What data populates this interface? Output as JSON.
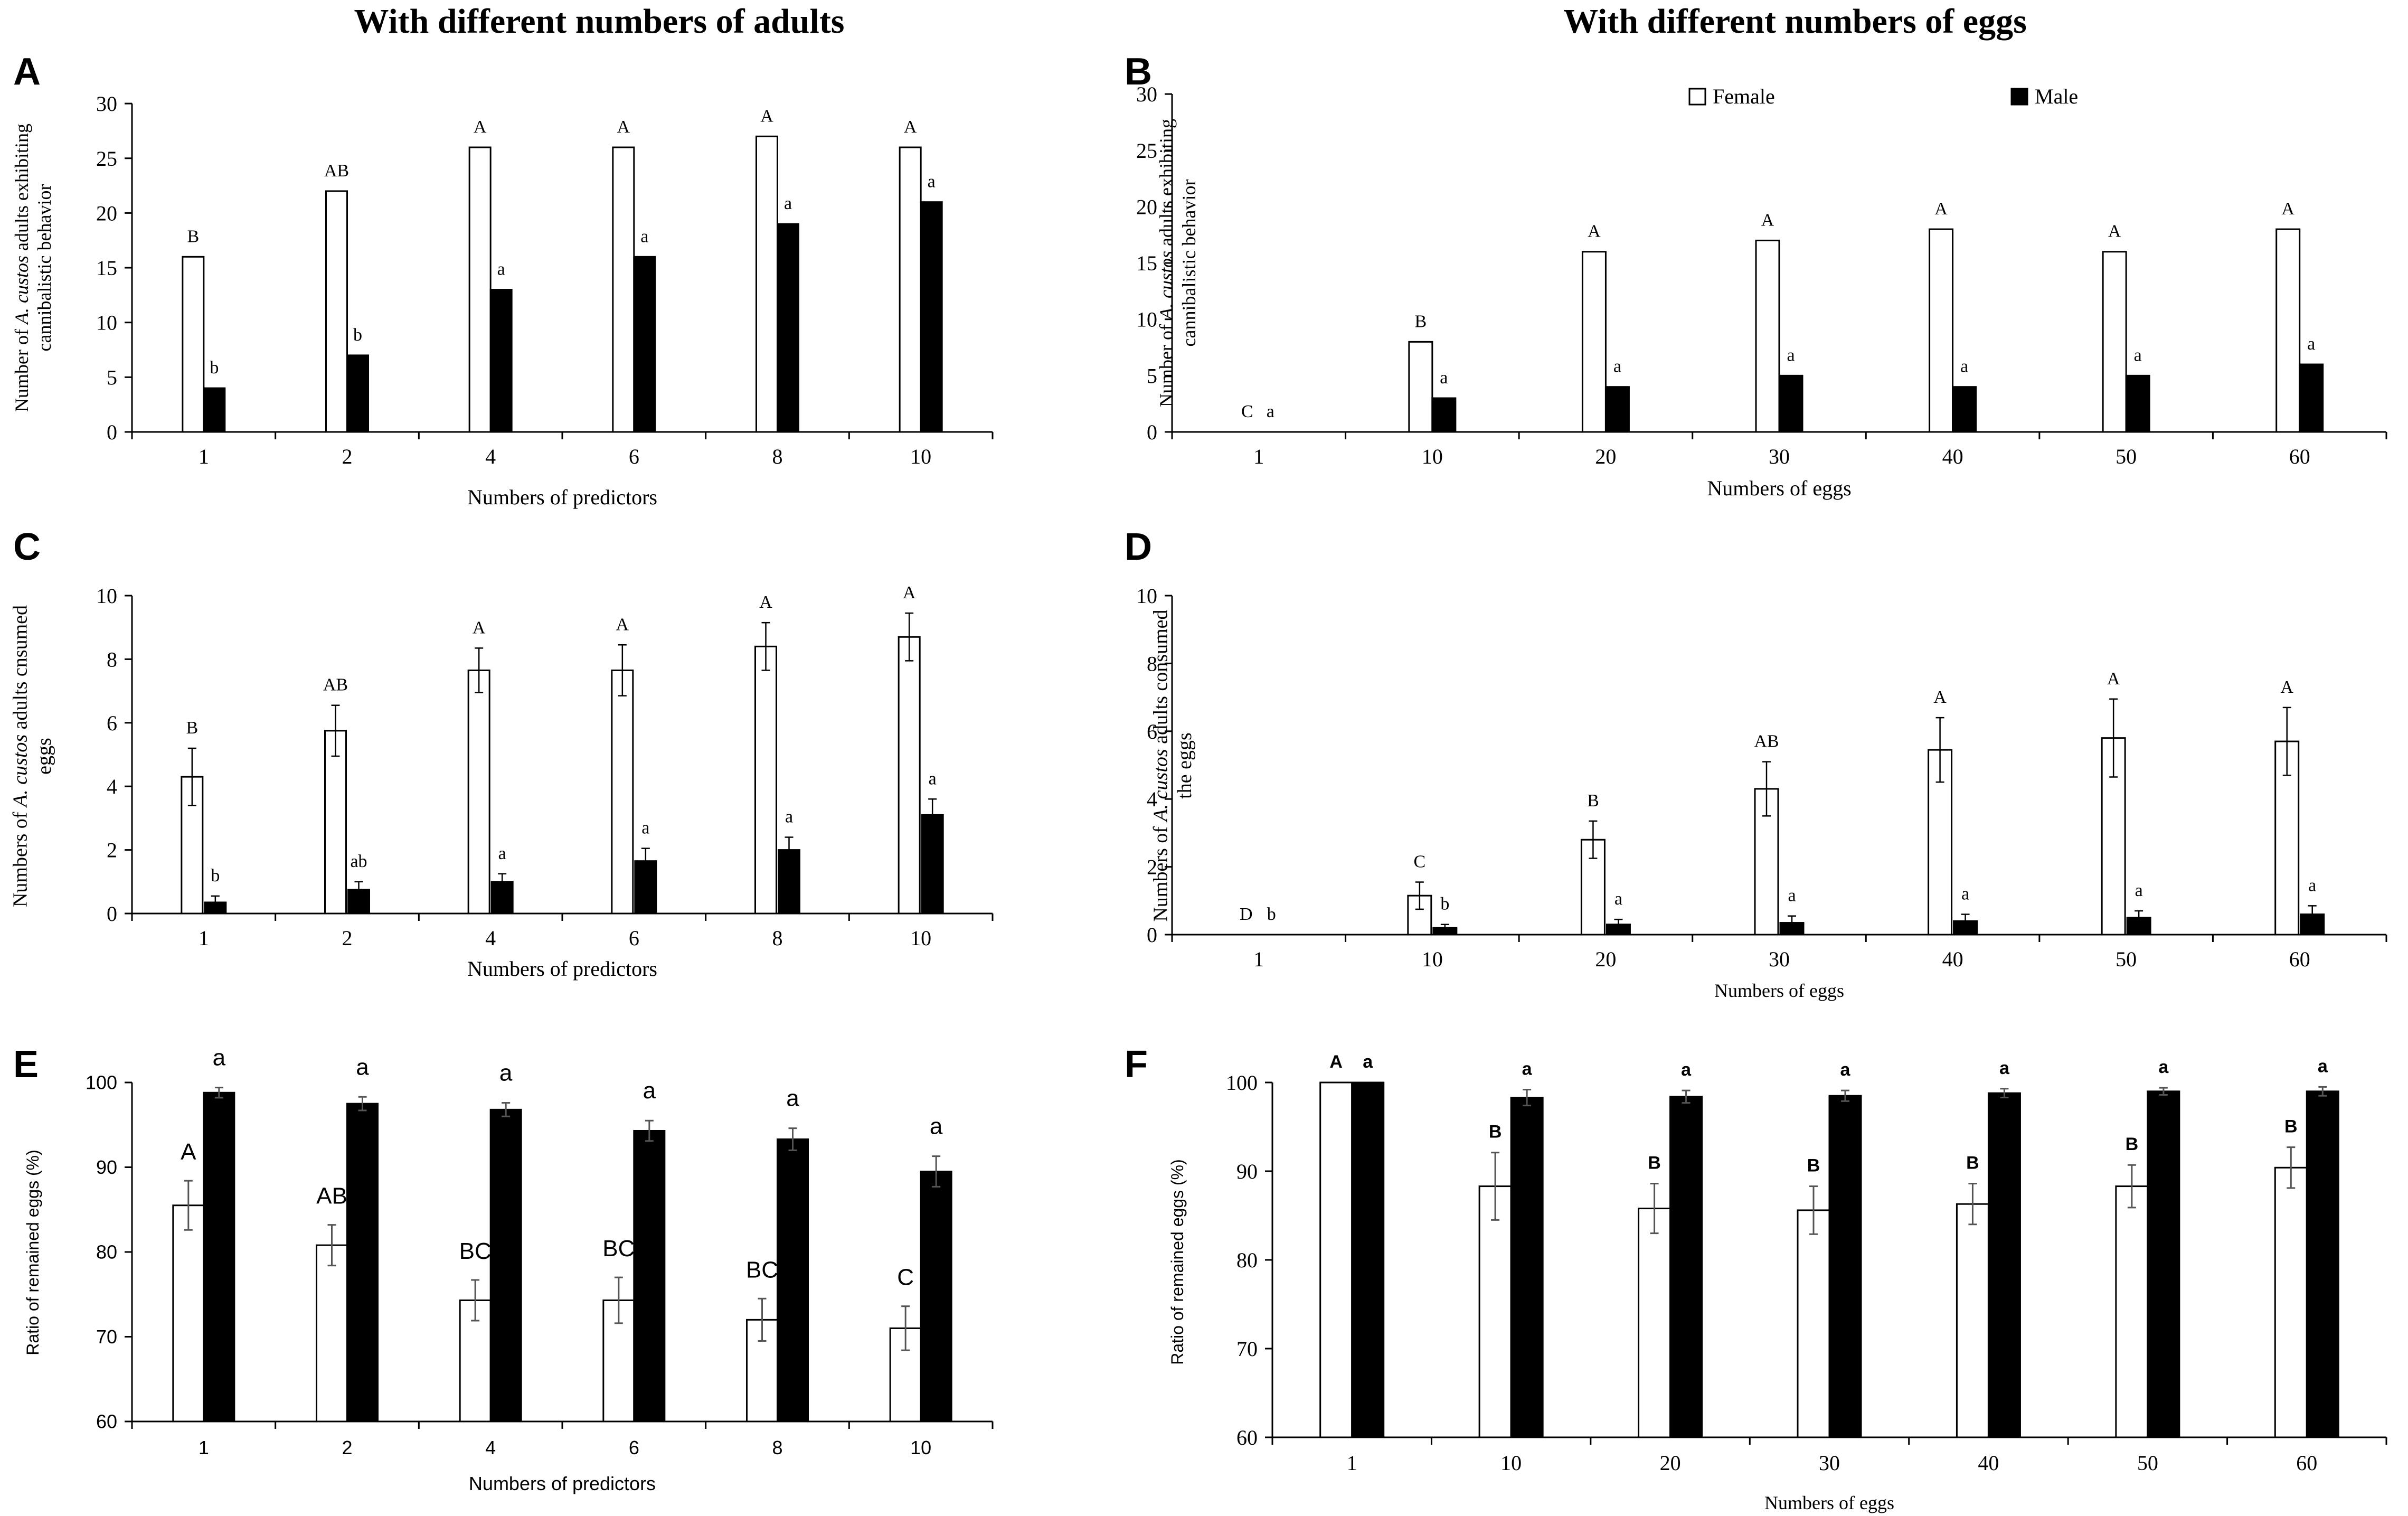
{
  "column_titles": {
    "left": "With different numbers of adults",
    "right": "With different numbers of eggs"
  },
  "colors": {
    "female": "#ffffff",
    "male": "#000000",
    "axis": "#000000"
  },
  "chart_data": [
    {
      "id": "A",
      "letter": "A",
      "type": "bar",
      "title": "",
      "xlabel": "Numbers of  predictors",
      "ylabel_lines": [
        "Number of A. custos adults exhibiting",
        "cannibalistic behavior"
      ],
      "ylim": [
        0,
        30
      ],
      "yticks": [
        0,
        5,
        10,
        15,
        20,
        25,
        30
      ],
      "categories": [
        "1",
        "2",
        "4",
        "6",
        "8",
        "10"
      ],
      "series": [
        {
          "name": "Female",
          "values": [
            16,
            22,
            26,
            26,
            27,
            26
          ],
          "labels": [
            "B",
            "AB",
            "A",
            "A",
            "A",
            "A"
          ]
        },
        {
          "name": "Male",
          "values": [
            4,
            7,
            13,
            16,
            19,
            21
          ],
          "labels": [
            "b",
            "b",
            "a",
            "a",
            "a",
            "a"
          ]
        }
      ],
      "legend": null
    },
    {
      "id": "B",
      "letter": "B",
      "type": "bar",
      "title": "",
      "xlabel": "Numbers of eggs",
      "ylabel_lines": [
        "Number of A. custos adults exhibiting",
        "cannibalistic behavior"
      ],
      "ylim": [
        0,
        30
      ],
      "yticks": [
        0,
        5,
        10,
        15,
        20,
        25,
        30
      ],
      "categories": [
        "1",
        "10",
        "20",
        "30",
        "40",
        "50",
        "60"
      ],
      "series": [
        {
          "name": "Female",
          "values": [
            0,
            8,
            16,
            17,
            18,
            16,
            18
          ],
          "labels": [
            "C",
            "B",
            "A",
            "A",
            "A",
            "A",
            "A"
          ]
        },
        {
          "name": "Male",
          "values": [
            0,
            3,
            4,
            5,
            4,
            5,
            6
          ],
          "labels": [
            "a",
            "a",
            "a",
            "a",
            "a",
            "a",
            "a"
          ]
        }
      ],
      "legend": {
        "position": "top",
        "entries": [
          "Female",
          "Male"
        ]
      }
    },
    {
      "id": "C",
      "letter": "C",
      "type": "bar",
      "title": "",
      "xlabel": "Numbers of predictors",
      "ylabel_lines": [
        "Numbers of A. custos adults cnsumed",
        "eggs"
      ],
      "ylim": [
        0,
        10
      ],
      "yticks": [
        0,
        2,
        4,
        6,
        8,
        10
      ],
      "categories": [
        "1",
        "2",
        "4",
        "6",
        "8",
        "10"
      ],
      "series": [
        {
          "name": "Female",
          "values": [
            4.3,
            5.75,
            7.65,
            7.65,
            8.4,
            8.7
          ],
          "errors": [
            0.9,
            0.8,
            0.7,
            0.8,
            0.75,
            0.75
          ],
          "labels": [
            "B",
            "AB",
            "A",
            "A",
            "A",
            "A"
          ]
        },
        {
          "name": "Male",
          "values": [
            0.35,
            0.75,
            1.0,
            1.65,
            2.0,
            3.1
          ],
          "errors": [
            0.2,
            0.25,
            0.25,
            0.4,
            0.4,
            0.5
          ],
          "labels": [
            "b",
            "ab",
            "a",
            "a",
            "a",
            "a"
          ]
        }
      ],
      "legend": null
    },
    {
      "id": "D",
      "letter": "D",
      "type": "bar",
      "title": "",
      "xlabel": "Numbers of eggs",
      "ylabel_lines": [
        "Numbers of A. custos adults  consumed",
        "the eggs"
      ],
      "ylim": [
        0,
        10
      ],
      "yticks": [
        0,
        2,
        4,
        6,
        8,
        10
      ],
      "categories": [
        "1",
        "10",
        "20",
        "30",
        "40",
        "50",
        "60"
      ],
      "series": [
        {
          "name": "Female",
          "values": [
            0,
            1.15,
            2.8,
            4.3,
            5.45,
            5.8,
            5.7
          ],
          "errors": [
            0,
            0.4,
            0.55,
            0.8,
            0.95,
            1.15,
            1.0
          ],
          "labels": [
            "D",
            "C",
            "B",
            "AB",
            "A",
            "A",
            "A"
          ]
        },
        {
          "name": "Male",
          "values": [
            0,
            0.2,
            0.3,
            0.35,
            0.4,
            0.5,
            0.6
          ],
          "errors": [
            0,
            0.1,
            0.15,
            0.2,
            0.2,
            0.2,
            0.25
          ],
          "labels": [
            "b",
            "b",
            "a",
            "a",
            "a",
            "a",
            "a"
          ]
        }
      ],
      "legend": null
    },
    {
      "id": "E",
      "letter": "E",
      "type": "bar",
      "title": "",
      "xlabel": "Numbers of predictors",
      "ylabel_lines": [
        "Ratio of remained eggs (%)"
      ],
      "ylim": [
        60,
        100
      ],
      "yticks": [
        60,
        70,
        80,
        90,
        100
      ],
      "categories": [
        "1",
        "2",
        "4",
        "6",
        "8",
        "10"
      ],
      "series": [
        {
          "name": "Female",
          "values": [
            85.5,
            80.8,
            74.3,
            74.3,
            72.0,
            71.0
          ],
          "errors": [
            2.9,
            2.4,
            2.4,
            2.7,
            2.5,
            2.6
          ],
          "labels": [
            "A",
            "AB",
            "BC",
            "BC",
            "BC",
            "C"
          ]
        },
        {
          "name": "Male",
          "values": [
            98.8,
            97.5,
            96.8,
            94.3,
            93.3,
            89.5
          ],
          "errors": [
            0.6,
            0.8,
            0.8,
            1.2,
            1.3,
            1.8
          ],
          "labels": [
            "a",
            "a",
            "a",
            "a",
            "a",
            "a"
          ]
        }
      ],
      "legend": null
    },
    {
      "id": "F",
      "letter": "F",
      "type": "bar",
      "title": "",
      "xlabel": "Numbers of eggs",
      "ylabel_lines": [
        "Ratio of remained eggs (%)"
      ],
      "ylim": [
        60,
        100
      ],
      "yticks": [
        60,
        70,
        80,
        90,
        100
      ],
      "categories": [
        "1",
        "10",
        "20",
        "30",
        "40",
        "50",
        "60"
      ],
      "series": [
        {
          "name": "Female",
          "values": [
            100,
            88.3,
            85.8,
            85.6,
            86.3,
            88.3,
            90.4
          ],
          "errors": [
            0,
            3.8,
            2.8,
            2.7,
            2.3,
            2.4,
            2.3
          ],
          "labels": [
            "A",
            "B",
            "B",
            "B",
            "B",
            "B",
            "B"
          ]
        },
        {
          "name": "Male",
          "values": [
            100,
            98.3,
            98.4,
            98.5,
            98.8,
            99.0,
            99.0
          ],
          "errors": [
            0,
            0.9,
            0.7,
            0.6,
            0.5,
            0.4,
            0.5
          ],
          "labels": [
            "a",
            "a",
            "a",
            "a",
            "a",
            "a",
            "a"
          ]
        }
      ],
      "legend": null
    }
  ]
}
